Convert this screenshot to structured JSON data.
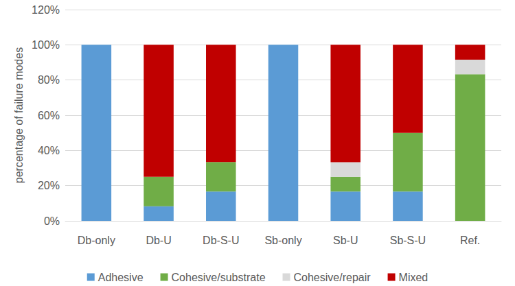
{
  "chart_data": {
    "type": "bar",
    "stacked": true,
    "grid": true,
    "legend": "bottom",
    "y_label": "percentage of failure modes",
    "categories": [
      "Db-only",
      "Db-U",
      "Db-S-U",
      "Sb-only",
      "Sb-U",
      "Sb-S-U",
      "Ref."
    ],
    "series": [
      {
        "name": "Adhesive",
        "color": "#5b9bd5",
        "values": [
          100,
          8.3,
          16.7,
          100,
          16.7,
          16.7,
          0
        ]
      },
      {
        "name": "Cohesive/substrate",
        "color": "#70ad47",
        "values": [
          0,
          16.7,
          16.7,
          0,
          8.3,
          33.3,
          83.3
        ]
      },
      {
        "name": "Cohesive/repair",
        "color": "#d9d9d9",
        "values": [
          0,
          0,
          0,
          0,
          8.3,
          0,
          8.3
        ]
      },
      {
        "name": "Mixed",
        "color": "#c00000",
        "values": [
          0,
          75,
          66.6,
          0,
          66.7,
          50,
          8.4
        ]
      }
    ],
    "ylim": [
      0,
      120
    ],
    "yticks": [
      {
        "value": 0,
        "label": "0%"
      },
      {
        "value": 20,
        "label": "20%"
      },
      {
        "value": 40,
        "label": "40%"
      },
      {
        "value": 60,
        "label": "60%"
      },
      {
        "value": 80,
        "label": "80%"
      },
      {
        "value": 100,
        "label": "100%"
      },
      {
        "value": 120,
        "label": "120%"
      }
    ]
  }
}
